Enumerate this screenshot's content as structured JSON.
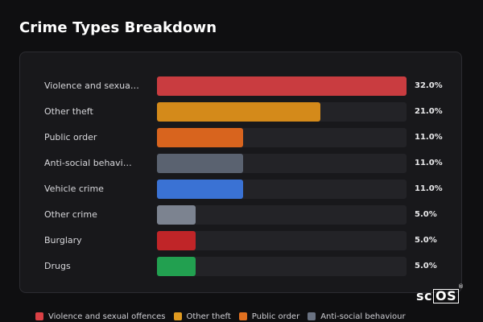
{
  "title": "Crime Types Breakdown",
  "watermark": "scOS",
  "chart_data": {
    "type": "bar",
    "orientation": "horizontal",
    "title": "Crime Types Breakdown",
    "categories": [
      "Violence and sexual offences",
      "Other theft",
      "Public order",
      "Anti-social behaviour",
      "Vehicle crime",
      "Other crime",
      "Burglary",
      "Drugs"
    ],
    "display_labels": [
      "Violence and sexua…",
      "Other theft",
      "Public order",
      "Anti-social behavi…",
      "Vehicle crime",
      "Other crime",
      "Burglary",
      "Drugs"
    ],
    "values": [
      32.0,
      21.0,
      11.0,
      11.0,
      11.0,
      5.0,
      5.0,
      5.0
    ],
    "value_labels": [
      "32.0%",
      "21.0%",
      "11.0%",
      "11.0%",
      "11.0%",
      "5.0%",
      "5.0%",
      "5.0%"
    ],
    "colors": [
      "#c93c40",
      "#d48a1a",
      "#d8641e",
      "#5a6270",
      "#3a72d4",
      "#7c8390",
      "#c02528",
      "#22a050"
    ],
    "legend_colors": [
      "#d94045",
      "#e09a20",
      "#e07020",
      "#6a7282"
    ],
    "legend": [
      "Violence and sexual offences",
      "Other theft",
      "Public order",
      "Anti-social behaviour"
    ],
    "legend_position": "bottom",
    "xlim": [
      0,
      32
    ],
    "grid": false
  }
}
